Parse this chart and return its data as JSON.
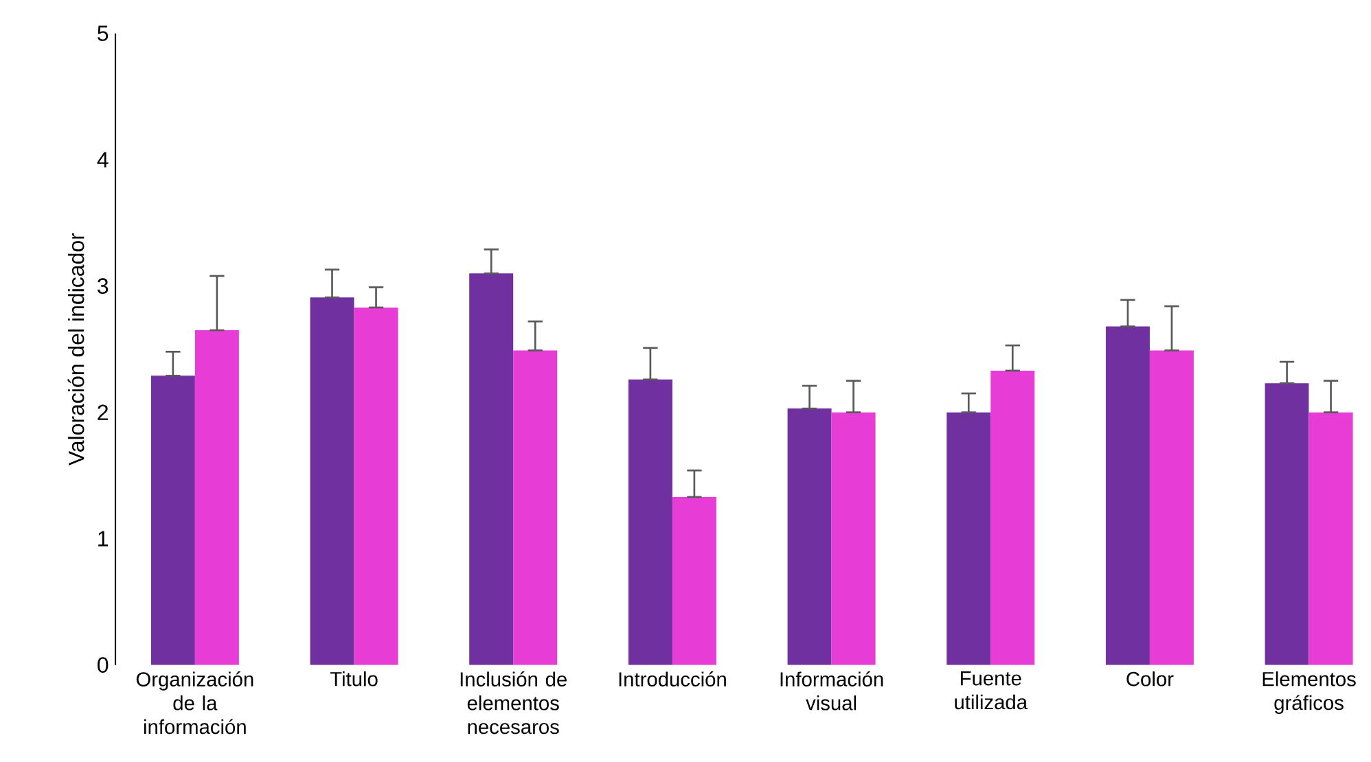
{
  "chart_data": {
    "type": "bar",
    "ylabel": "Valoración del indicador",
    "categories": [
      "Organización de la información",
      "Titulo",
      "Inclusión de elementos necesaros",
      "Introducción",
      "Información visual",
      "Fuente utilizada",
      "Color",
      "Elementos gráficos"
    ],
    "series": [
      {
        "color": "#7030a0",
        "values": [
          2.29,
          2.91,
          3.1,
          2.26,
          2.03,
          2.0,
          2.68,
          2.23
        ],
        "errors": [
          [
            2.29,
            2.48
          ],
          [
            2.91,
            3.13
          ],
          [
            3.1,
            3.29
          ],
          [
            2.26,
            2.51
          ],
          [
            2.03,
            2.21
          ],
          [
            2.0,
            2.15
          ],
          [
            2.68,
            2.89
          ],
          [
            2.23,
            2.4
          ]
        ]
      },
      {
        "color": "#e83cd6",
        "values": [
          2.65,
          2.83,
          2.49,
          1.33,
          2.0,
          2.33,
          2.49,
          2.0
        ],
        "errors": [
          [
            2.65,
            3.08
          ],
          [
            2.83,
            2.99
          ],
          [
            2.49,
            2.72
          ],
          [
            1.33,
            1.54
          ],
          [
            2.0,
            2.25
          ],
          [
            2.33,
            2.53
          ],
          [
            2.49,
            2.84
          ],
          [
            2.0,
            2.25
          ]
        ]
      }
    ],
    "ylim": [
      0,
      5
    ],
    "yticks": [
      0,
      1,
      2,
      3,
      4,
      5
    ]
  }
}
